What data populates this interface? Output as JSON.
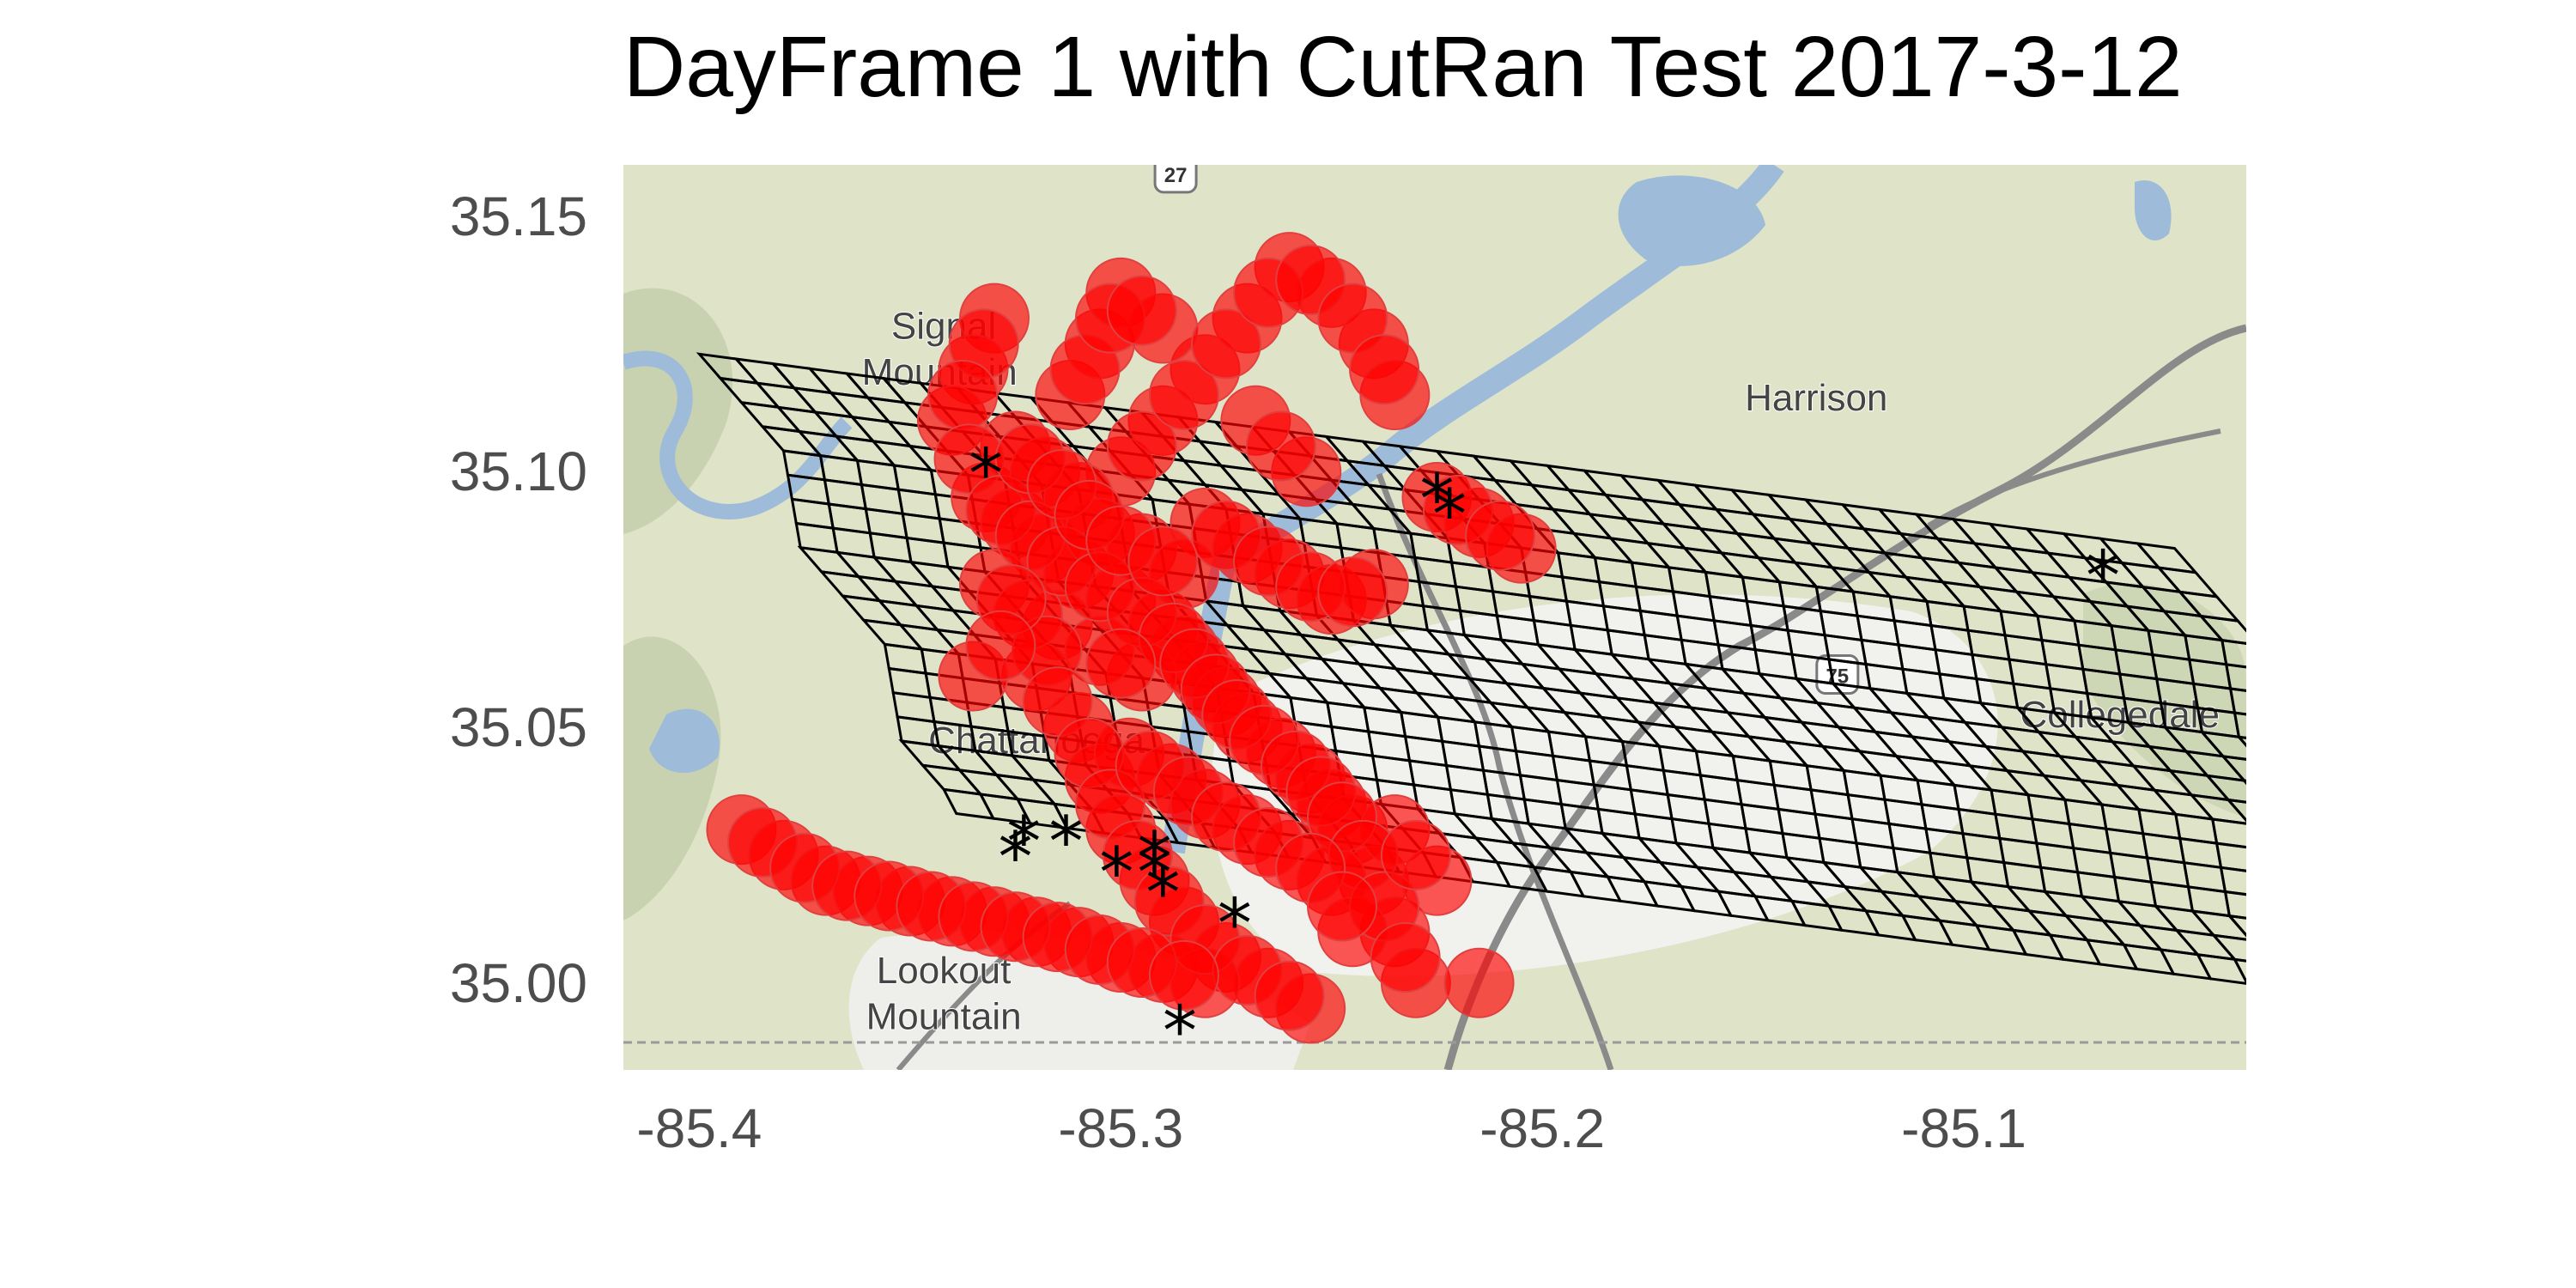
{
  "title": "DayFrame 1 with CutRan Test 2017-3-12",
  "map": {
    "lon_range": [
      -85.418,
      -85.033
    ],
    "lat_range": [
      34.983,
      35.16
    ],
    "x_ticks": [
      -85.4,
      -85.3,
      -85.2,
      -85.1
    ],
    "x_tick_labels": [
      "-85.4",
      "-85.3",
      "-85.2",
      "-85.1"
    ],
    "y_ticks": [
      35.0,
      35.05,
      35.1,
      35.15
    ],
    "y_tick_labels": [
      "35.00",
      "35.05",
      "35.10",
      "35.15"
    ],
    "place_labels": [
      {
        "text": "Harrison",
        "lon": -85.135,
        "lat": 35.112
      },
      {
        "text": "Collegedale",
        "lon": -85.063,
        "lat": 35.05
      },
      {
        "text": "Lookout",
        "lon": -85.342,
        "lat": 35.0
      },
      {
        "text": "Mountain",
        "lon": -85.342,
        "lat": 34.991
      },
      {
        "text": "Signal",
        "lon": -85.342,
        "lat": 35.126
      },
      {
        "text": "Mountain",
        "lon": -85.343,
        "lat": 35.117
      },
      {
        "text": "Chattanooga",
        "lon": -85.32,
        "lat": 35.045
      }
    ],
    "road_shields": [
      {
        "text": "27",
        "lon": -85.287,
        "lat": 35.158
      },
      {
        "text": "75",
        "lon": -85.13,
        "lat": 35.06
      }
    ],
    "colors": {
      "land": "#dfe3c8",
      "water": "#9ebbd9",
      "urban": "#f2f2f2",
      "road": "#808080",
      "grid": "#000000",
      "points": "#ff0000",
      "stars": "#000000"
    }
  },
  "grid": {
    "corner_nw": [
      -85.4,
      35.123
    ],
    "corner_ne": [
      -85.224,
      35.159
    ],
    "corner_sw": [
      -85.389,
      35.033
    ],
    "columns": 40,
    "rows": 19,
    "row_step": [
      0.003,
      -0.00473
    ],
    "row_offsets": [
      0,
      0.002,
      0.004,
      0.006,
      0.008,
      0.006,
      0.004,
      0.002,
      0,
      0.002,
      0.004,
      0.006,
      0.008,
      0.006,
      0.004,
      0.002,
      0,
      0.002,
      0.004
    ]
  },
  "points": [
    [
      -85.33,
      35.13
    ],
    [
      -85.335,
      35.12
    ],
    [
      -85.34,
      35.11
    ],
    [
      -85.332,
      35.095
    ],
    [
      -85.325,
      35.09
    ],
    [
      -85.318,
      35.085
    ],
    [
      -85.31,
      35.08
    ],
    [
      -85.3,
      35.075
    ],
    [
      -85.29,
      35.07
    ],
    [
      -85.285,
      35.065
    ],
    [
      -85.28,
      35.06
    ],
    [
      -85.275,
      35.055
    ],
    [
      -85.27,
      35.05
    ],
    [
      -85.262,
      35.045
    ],
    [
      -85.255,
      35.04
    ],
    [
      -85.25,
      35.035
    ],
    [
      -85.245,
      35.03
    ],
    [
      -85.24,
      35.02
    ],
    [
      -85.235,
      35.01
    ],
    [
      -85.23,
      35.0
    ],
    [
      -85.315,
      35.07
    ],
    [
      -85.32,
      35.06
    ],
    [
      -85.31,
      35.05
    ],
    [
      -85.305,
      35.04
    ],
    [
      -85.3,
      35.03
    ],
    [
      -85.292,
      35.02
    ],
    [
      -85.285,
      35.012
    ],
    [
      -85.275,
      35.005
    ],
    [
      -85.265,
      35.0
    ],
    [
      -85.255,
      34.995
    ],
    [
      -85.3,
      35.1
    ],
    [
      -85.29,
      35.11
    ],
    [
      -85.28,
      35.12
    ],
    [
      -85.27,
      35.13
    ],
    [
      -85.26,
      35.14
    ],
    [
      -85.25,
      35.135
    ],
    [
      -85.24,
      35.125
    ],
    [
      -85.235,
      35.115
    ],
    [
      -85.28,
      35.09
    ],
    [
      -85.27,
      35.085
    ],
    [
      -85.26,
      35.08
    ],
    [
      -85.25,
      35.075
    ],
    [
      -85.24,
      35.078
    ],
    [
      -85.225,
      35.095
    ],
    [
      -85.215,
      35.09
    ],
    [
      -85.205,
      35.085
    ],
    [
      -85.39,
      35.03
    ],
    [
      -85.38,
      35.025
    ],
    [
      -85.37,
      35.02
    ],
    [
      -85.36,
      35.018
    ],
    [
      -85.35,
      35.016
    ],
    [
      -85.34,
      35.014
    ],
    [
      -85.33,
      35.012
    ],
    [
      -85.32,
      35.01
    ],
    [
      -85.31,
      35.008
    ],
    [
      -85.3,
      35.005
    ],
    [
      -85.29,
      35.003
    ],
    [
      -85.28,
      35.0
    ],
    [
      -85.295,
      35.06
    ],
    [
      -85.305,
      35.065
    ],
    [
      -85.298,
      35.045
    ],
    [
      -85.288,
      35.04
    ],
    [
      -85.28,
      35.035
    ],
    [
      -85.27,
      35.03
    ],
    [
      -85.26,
      35.025
    ],
    [
      -85.25,
      35.02
    ],
    [
      -85.245,
      35.01
    ],
    [
      -85.235,
      35.03
    ],
    [
      -85.225,
      35.02
    ],
    [
      -85.215,
      35.0
    ],
    [
      -85.325,
      35.105
    ],
    [
      -85.318,
      35.1
    ],
    [
      -85.31,
      35.095
    ],
    [
      -85.305,
      35.088
    ],
    [
      -85.295,
      35.085
    ],
    [
      -85.285,
      35.08
    ],
    [
      -85.33,
      35.078
    ],
    [
      -85.322,
      35.072
    ],
    [
      -85.335,
      35.06
    ],
    [
      -85.312,
      35.115
    ],
    [
      -85.305,
      35.125
    ],
    [
      -85.3,
      35.135
    ],
    [
      -85.29,
      35.128
    ],
    [
      -85.268,
      35.11
    ],
    [
      -85.256,
      35.1
    ]
  ],
  "stars": [
    [
      -85.332,
      35.1
    ],
    [
      -85.225,
      35.095
    ],
    [
      -85.222,
      35.092
    ],
    [
      -85.067,
      35.08
    ],
    [
      -85.323,
      35.028
    ],
    [
      -85.325,
      35.025
    ],
    [
      -85.313,
      35.028
    ],
    [
      -85.301,
      35.022
    ],
    [
      -85.292,
      35.025
    ],
    [
      -85.29,
      35.018
    ],
    [
      -85.292,
      35.022
    ],
    [
      -85.273,
      35.012
    ],
    [
      -85.286,
      34.991
    ]
  ]
}
